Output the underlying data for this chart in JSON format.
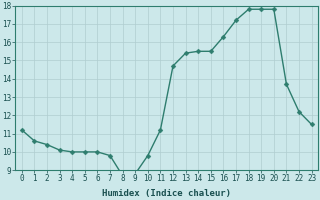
{
  "x": [
    0,
    1,
    2,
    3,
    4,
    5,
    6,
    7,
    8,
    9,
    10,
    11,
    12,
    13,
    14,
    15,
    16,
    17,
    18,
    19,
    20,
    21,
    22,
    23
  ],
  "y": [
    11.2,
    10.6,
    10.4,
    10.1,
    10.0,
    10.0,
    10.0,
    9.8,
    8.7,
    8.8,
    9.8,
    11.2,
    14.7,
    15.4,
    15.5,
    15.5,
    16.3,
    17.2,
    17.8,
    17.8,
    17.8,
    13.7,
    12.2,
    11.5
  ],
  "line_color": "#2e7d6e",
  "marker_color": "#2e7d6e",
  "bg_color": "#cce8ea",
  "grid_color": "#b0cdd0",
  "xlabel": "Humidex (Indice chaleur)",
  "xlim": [
    -0.5,
    23.5
  ],
  "ylim": [
    9,
    18
  ],
  "yticks": [
    9,
    10,
    11,
    12,
    13,
    14,
    15,
    16,
    17,
    18
  ],
  "xticks": [
    0,
    1,
    2,
    3,
    4,
    5,
    6,
    7,
    8,
    9,
    10,
    11,
    12,
    13,
    14,
    15,
    16,
    17,
    18,
    19,
    20,
    21,
    22,
    23
  ],
  "tick_label_fontsize": 5.5,
  "xlabel_fontsize": 6.5,
  "marker_size": 2.5,
  "line_width": 1.0
}
